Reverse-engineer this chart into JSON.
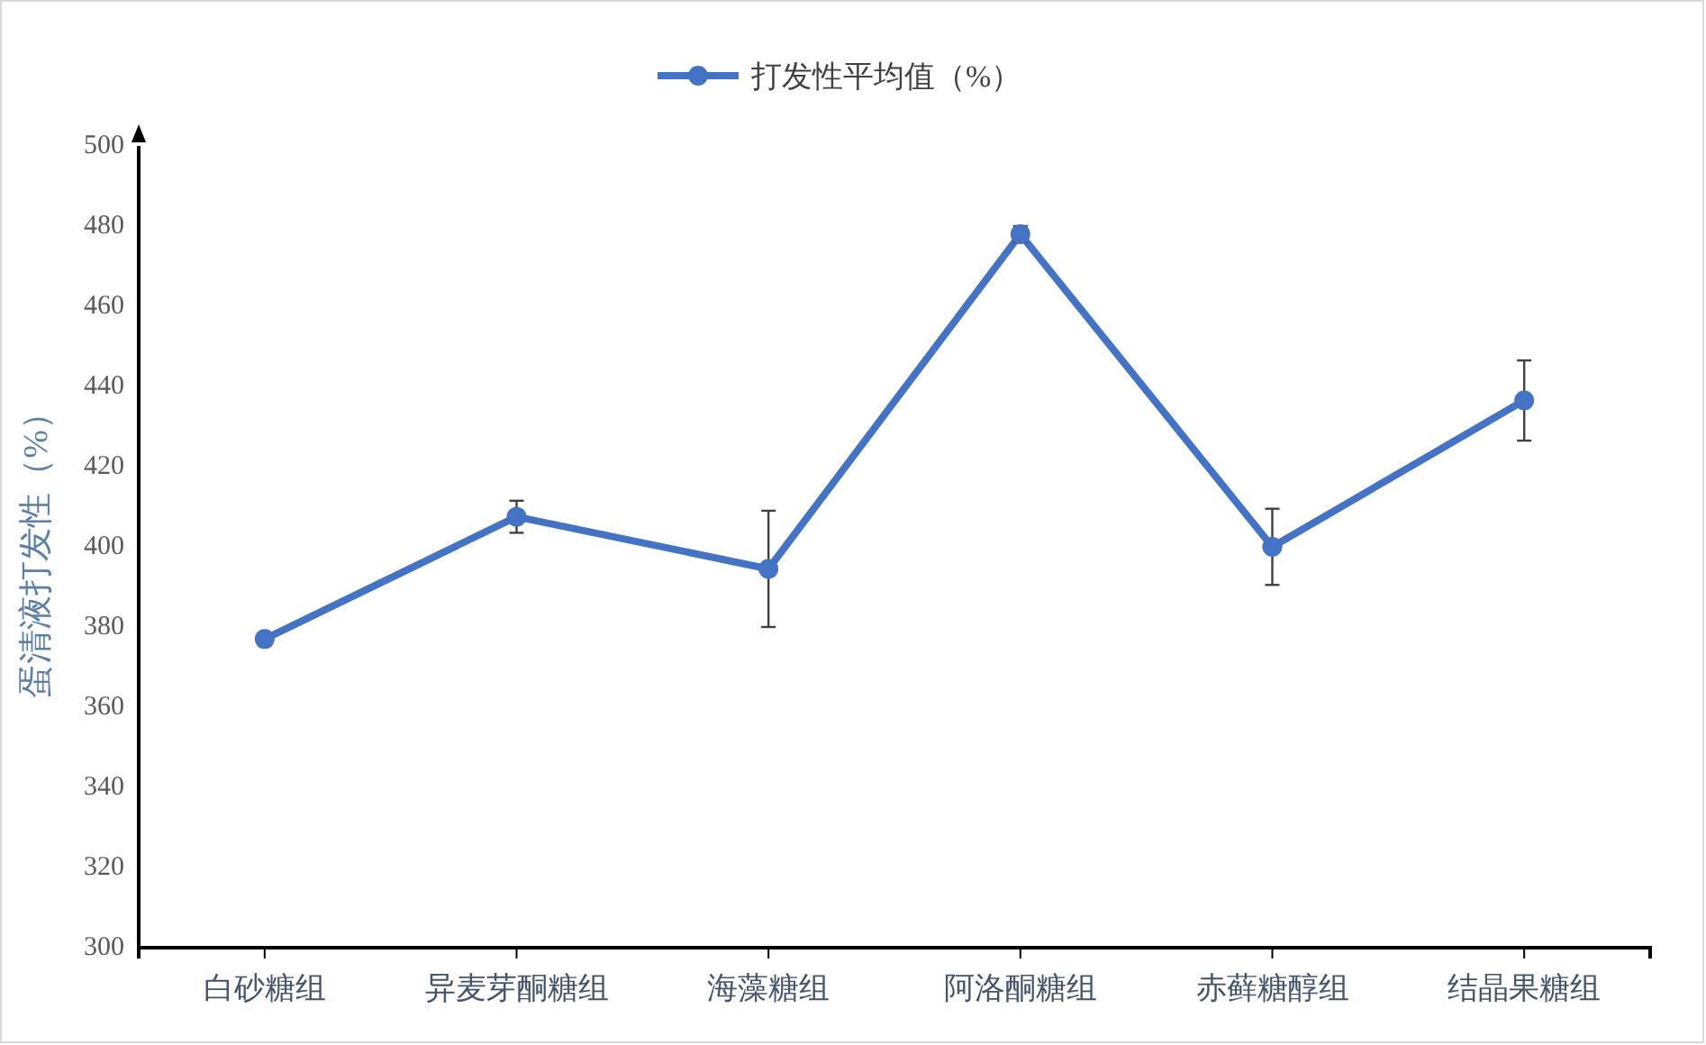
{
  "chart_data": {
    "type": "line",
    "ylabel": "蛋清液打发性（%）",
    "categories": [
      "白砂糖组",
      "异麦芽酮糖组",
      "海藻糖组",
      "阿洛酮糖组",
      "赤藓糖醇组",
      "结晶果糖组"
    ],
    "series": [
      {
        "name": "打发性平均值（%）",
        "color": "#4472c4",
        "values": [
          377,
          407.5,
          394.5,
          478,
          400,
          436.5
        ],
        "errors": [
          1.5,
          4,
          14.5,
          2,
          9.5,
          10
        ]
      }
    ],
    "ylim": [
      300,
      500
    ],
    "yticks": [
      300,
      320,
      340,
      360,
      380,
      400,
      420,
      440,
      460,
      480,
      500
    ],
    "grid": false,
    "legend": "top",
    "marker": "circle",
    "line_style": "solid"
  }
}
